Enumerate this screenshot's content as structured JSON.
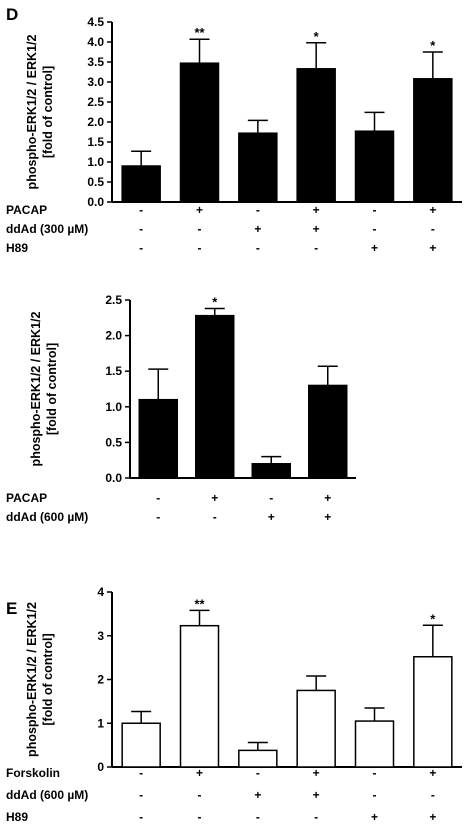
{
  "chart_data": [
    {
      "type": "bar",
      "panel_label": "D",
      "ylabel_line1": "phospho-ERK1/2 / ERK1/2",
      "ylabel_line2": "[fold of control]",
      "ylim": [
        0,
        4.5
      ],
      "yticks": [
        "0.0",
        "0.5",
        "1.0",
        "1.5",
        "2.0",
        "2.5",
        "3.0",
        "3.5",
        "4.0",
        "4.5"
      ],
      "bar_fill": "#000000",
      "values": [
        0.9,
        3.47,
        1.72,
        3.33,
        1.77,
        3.08
      ],
      "errors": [
        0.37,
        0.6,
        0.32,
        0.65,
        0.47,
        0.67
      ],
      "significance": [
        "",
        "**",
        "",
        "*",
        "",
        "*"
      ],
      "conditions": [
        {
          "name": "PACAP",
          "marks": [
            "-",
            "+",
            "-",
            "+",
            "-",
            "+"
          ]
        },
        {
          "name": "ddAd (300 µM)",
          "marks": [
            "-",
            "-",
            "+",
            "+",
            "-",
            "-"
          ]
        },
        {
          "name": "H89",
          "marks": [
            "-",
            "-",
            "-",
            "-",
            "+",
            "+"
          ]
        }
      ]
    },
    {
      "type": "bar",
      "panel_label": "",
      "ylabel_line1": "phospho-ERK1/2 / ERK1/2",
      "ylabel_line2": "[fold of control]",
      "ylim": [
        0,
        2.5
      ],
      "yticks": [
        "0.0",
        "0.5",
        "1.0",
        "1.5",
        "2.0",
        "2.5"
      ],
      "bar_fill": "#000000",
      "values": [
        1.1,
        2.28,
        0.2,
        1.3
      ],
      "errors": [
        0.43,
        0.1,
        0.1,
        0.27
      ],
      "significance": [
        "",
        "*",
        "",
        ""
      ],
      "conditions": [
        {
          "name": "PACAP",
          "marks": [
            "-",
            "+",
            "-",
            "+"
          ]
        },
        {
          "name": "ddAd (600 µM)",
          "marks": [
            "-",
            "-",
            "+",
            "+"
          ]
        }
      ]
    },
    {
      "type": "bar",
      "panel_label": "E",
      "ylabel_line1": "phospho-ERK1/2 / ERK1/2",
      "ylabel_line2": "[fold of control]",
      "ylim": [
        0,
        4
      ],
      "yticks": [
        "0",
        "1",
        "2",
        "3",
        "4"
      ],
      "bar_fill": "#ffffff",
      "values": [
        1.0,
        3.23,
        0.38,
        1.75,
        1.05,
        2.52
      ],
      "errors": [
        0.27,
        0.35,
        0.18,
        0.33,
        0.3,
        0.72
      ],
      "significance": [
        "",
        "**",
        "",
        "",
        "",
        "*"
      ],
      "conditions": [
        {
          "name": "Forskolin",
          "marks": [
            "-",
            "+",
            "-",
            "+",
            "-",
            "+"
          ]
        },
        {
          "name": "ddAd (600 µM)",
          "marks": [
            "-",
            "-",
            "+",
            "+",
            "-",
            "-"
          ]
        },
        {
          "name": "H89",
          "marks": [
            "-",
            "-",
            "-",
            "-",
            "+",
            "+"
          ]
        }
      ]
    }
  ]
}
